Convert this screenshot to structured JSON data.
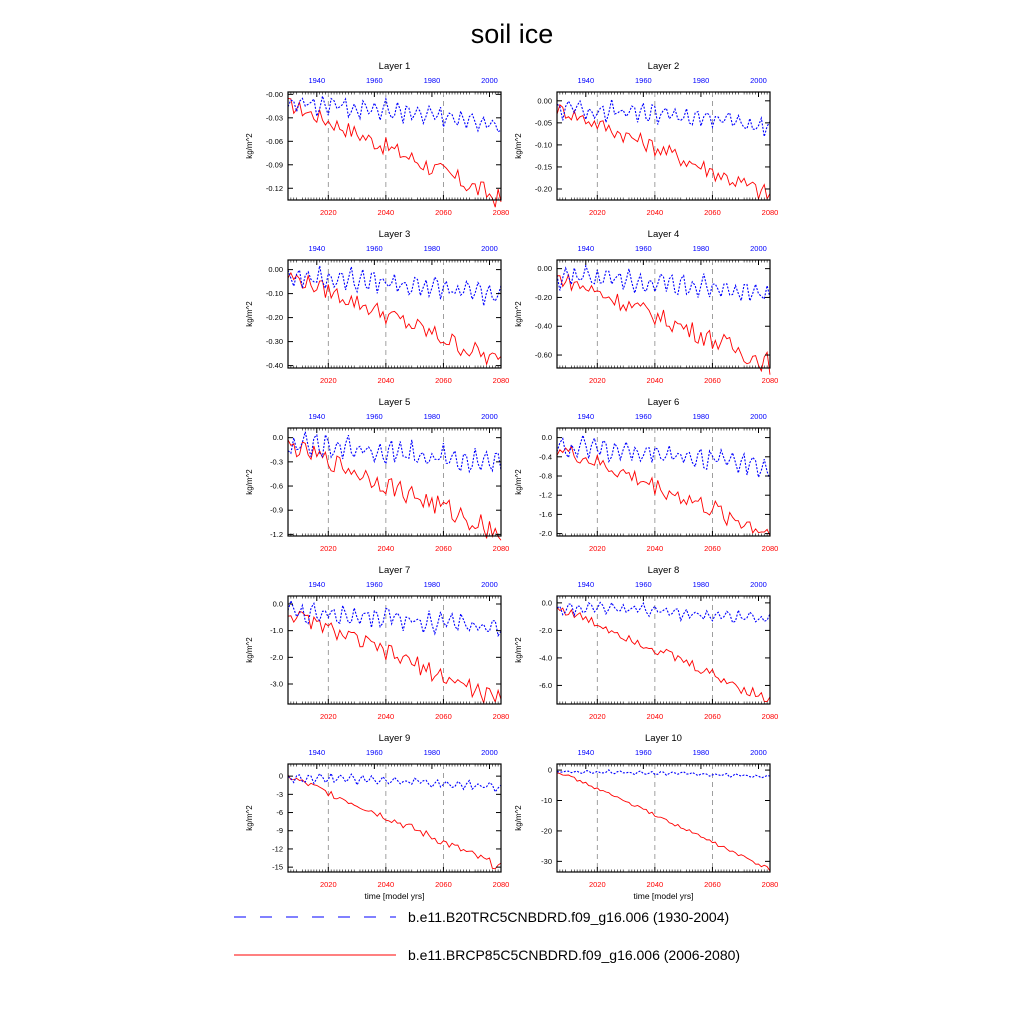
{
  "title": "soil ice",
  "xlabel": "time [model yrs]",
  "ylabel": "kg/m^2",
  "colors": {
    "historical": "#0000ff",
    "future": "#ff0000",
    "grid": "#888888",
    "axis": "#000000"
  },
  "legend": [
    {
      "key": "historical",
      "label": "b.e11.B20TRC5CNBDRD.f09_g16.006 (1930-2004)",
      "style": "dashed"
    },
    {
      "key": "future",
      "label": "b.e11.BRCP85C5CNBDRD.f09_g16.006 (2006-2080)",
      "style": "solid"
    }
  ],
  "chart_data": [
    {
      "type": "line",
      "title": "Layer 1",
      "xlim": [
        2006,
        2080
      ],
      "top_xlim": [
        1930,
        2004
      ],
      "ylim": [
        -0.135,
        0.003
      ],
      "yticks": [
        0.0,
        -0.03,
        -0.06,
        -0.09,
        -0.12
      ],
      "ytick_labels": [
        "-0.00",
        "-0.03",
        "-0.06",
        "-0.09",
        "-0.12"
      ],
      "xticks": [
        2020,
        2040,
        2060,
        2080
      ],
      "top_xticks": [
        1940,
        1960,
        1980,
        2000
      ],
      "future_end": -0.135,
      "hist_end": -0.04,
      "hist_mean": -0.02,
      "amp": 0.009
    },
    {
      "type": "line",
      "title": "Layer 2",
      "xlim": [
        2006,
        2080
      ],
      "top_xlim": [
        1930,
        2004
      ],
      "ylim": [
        -0.225,
        0.02
      ],
      "yticks": [
        0.0,
        -0.05,
        -0.1,
        -0.15,
        -0.2
      ],
      "ytick_labels": [
        "0.00",
        "-0.05",
        "-0.10",
        "-0.15",
        "-0.20"
      ],
      "xticks": [
        2020,
        2040,
        2060,
        2080
      ],
      "top_xticks": [
        1940,
        1960,
        1980,
        2000
      ],
      "future_end": -0.215,
      "hist_end": -0.06,
      "hist_mean": -0.03,
      "amp": 0.015
    },
    {
      "type": "line",
      "title": "Layer 3",
      "xlim": [
        2006,
        2080
      ],
      "top_xlim": [
        1930,
        2004
      ],
      "ylim": [
        -0.41,
        0.04
      ],
      "yticks": [
        0.0,
        -0.1,
        -0.2,
        -0.3,
        -0.4
      ],
      "ytick_labels": [
        "0.00",
        "-0.10",
        "-0.20",
        "-0.30",
        "-0.40"
      ],
      "xticks": [
        2020,
        2040,
        2060,
        2080
      ],
      "top_xticks": [
        1940,
        1960,
        1980,
        2000
      ],
      "future_end": -0.39,
      "hist_end": -0.11,
      "hist_mean": -0.05,
      "amp": 0.03
    },
    {
      "type": "line",
      "title": "Layer 4",
      "xlim": [
        2006,
        2080
      ],
      "top_xlim": [
        1930,
        2004
      ],
      "ylim": [
        -0.69,
        0.06
      ],
      "yticks": [
        0.0,
        -0.2,
        -0.4,
        -0.6
      ],
      "ytick_labels": [
        "0.00",
        "-0.20",
        "-0.40",
        "-0.60"
      ],
      "xticks": [
        2020,
        2040,
        2060,
        2080
      ],
      "top_xticks": [
        1940,
        1960,
        1980,
        2000
      ],
      "future_end": -0.66,
      "hist_end": -0.18,
      "hist_mean": -0.1,
      "amp": 0.05
    },
    {
      "type": "line",
      "title": "Layer 5",
      "xlim": [
        2006,
        2080
      ],
      "top_xlim": [
        1930,
        2004
      ],
      "ylim": [
        -1.22,
        0.12
      ],
      "yticks": [
        0.0,
        -0.3,
        -0.6,
        -0.9,
        -1.2
      ],
      "ytick_labels": [
        "0.0",
        "-0.3",
        "-0.6",
        "-0.9",
        "-1.2"
      ],
      "xticks": [
        2020,
        2040,
        2060,
        2080
      ],
      "top_xticks": [
        1940,
        1960,
        1980,
        2000
      ],
      "future_end": -1.18,
      "hist_end": -0.33,
      "hist_mean": -0.18,
      "amp": 0.1
    },
    {
      "type": "line",
      "title": "Layer 6",
      "xlim": [
        2006,
        2080
      ],
      "top_xlim": [
        1930,
        2004
      ],
      "ylim": [
        -2.05,
        0.2
      ],
      "yticks": [
        0.0,
        -0.4,
        -0.8,
        -1.2,
        -1.6,
        -2.0
      ],
      "ytick_labels": [
        "0.0",
        "-0.4",
        "-0.8",
        "-1.2",
        "-1.6",
        "-2.0"
      ],
      "xticks": [
        2020,
        2040,
        2060,
        2080
      ],
      "top_xticks": [
        1940,
        1960,
        1980,
        2000
      ],
      "future_end": -2.0,
      "hist_end": -0.6,
      "hist_mean": -0.35,
      "amp": 0.15
    },
    {
      "type": "line",
      "title": "Layer 7",
      "xlim": [
        2006,
        2080
      ],
      "top_xlim": [
        1930,
        2004
      ],
      "ylim": [
        -3.75,
        0.3
      ],
      "yticks": [
        0.0,
        -1.0,
        -2.0,
        -3.0
      ],
      "ytick_labels": [
        "0.0",
        "-1.0",
        "-2.0",
        "-3.0"
      ],
      "xticks": [
        2020,
        2040,
        2060,
        2080
      ],
      "top_xticks": [
        1940,
        1960,
        1980,
        2000
      ],
      "future_end": -3.65,
      "hist_end": -0.95,
      "hist_mean": -0.55,
      "amp": 0.25
    },
    {
      "type": "line",
      "title": "Layer 8",
      "xlim": [
        2006,
        2080
      ],
      "top_xlim": [
        1930,
        2004
      ],
      "ylim": [
        -7.35,
        0.5
      ],
      "yticks": [
        0.0,
        -2.0,
        -4.0,
        -6.0
      ],
      "ytick_labels": [
        "0.0",
        "-2.0",
        "-4.0",
        "-6.0"
      ],
      "xticks": [
        2020,
        2040,
        2060,
        2080
      ],
      "top_xticks": [
        1940,
        1960,
        1980,
        2000
      ],
      "future_end": -7.1,
      "hist_end": -1.2,
      "hist_mean": -0.6,
      "amp": 0.3
    },
    {
      "type": "line",
      "title": "Layer 9",
      "xlim": [
        2006,
        2080
      ],
      "top_xlim": [
        1930,
        2004
      ],
      "ylim": [
        -15.8,
        2.0
      ],
      "yticks": [
        0,
        -3,
        -6,
        -9,
        -12,
        -15
      ],
      "ytick_labels": [
        "0",
        "-3",
        "-6",
        "-9",
        "-12",
        "-15"
      ],
      "xticks": [
        2020,
        2040,
        2060,
        2080
      ],
      "top_xticks": [
        1940,
        1960,
        1980,
        2000
      ],
      "future_end": -15.1,
      "hist_end": -1.8,
      "hist_mean": -0.5,
      "amp": 0.5
    },
    {
      "type": "line",
      "title": "Layer 10",
      "xlim": [
        2006,
        2080
      ],
      "top_xlim": [
        1930,
        2004
      ],
      "ylim": [
        -33.5,
        2.0
      ],
      "yticks": [
        0,
        -10,
        -20,
        -30
      ],
      "ytick_labels": [
        "0",
        "-10",
        "-20",
        "-30"
      ],
      "xticks": [
        2020,
        2040,
        2060,
        2080
      ],
      "top_xticks": [
        1940,
        1960,
        1980,
        2000
      ],
      "future_end": -32.8,
      "hist_end": -2.2,
      "hist_mean": -0.8,
      "amp": 0.4
    }
  ]
}
